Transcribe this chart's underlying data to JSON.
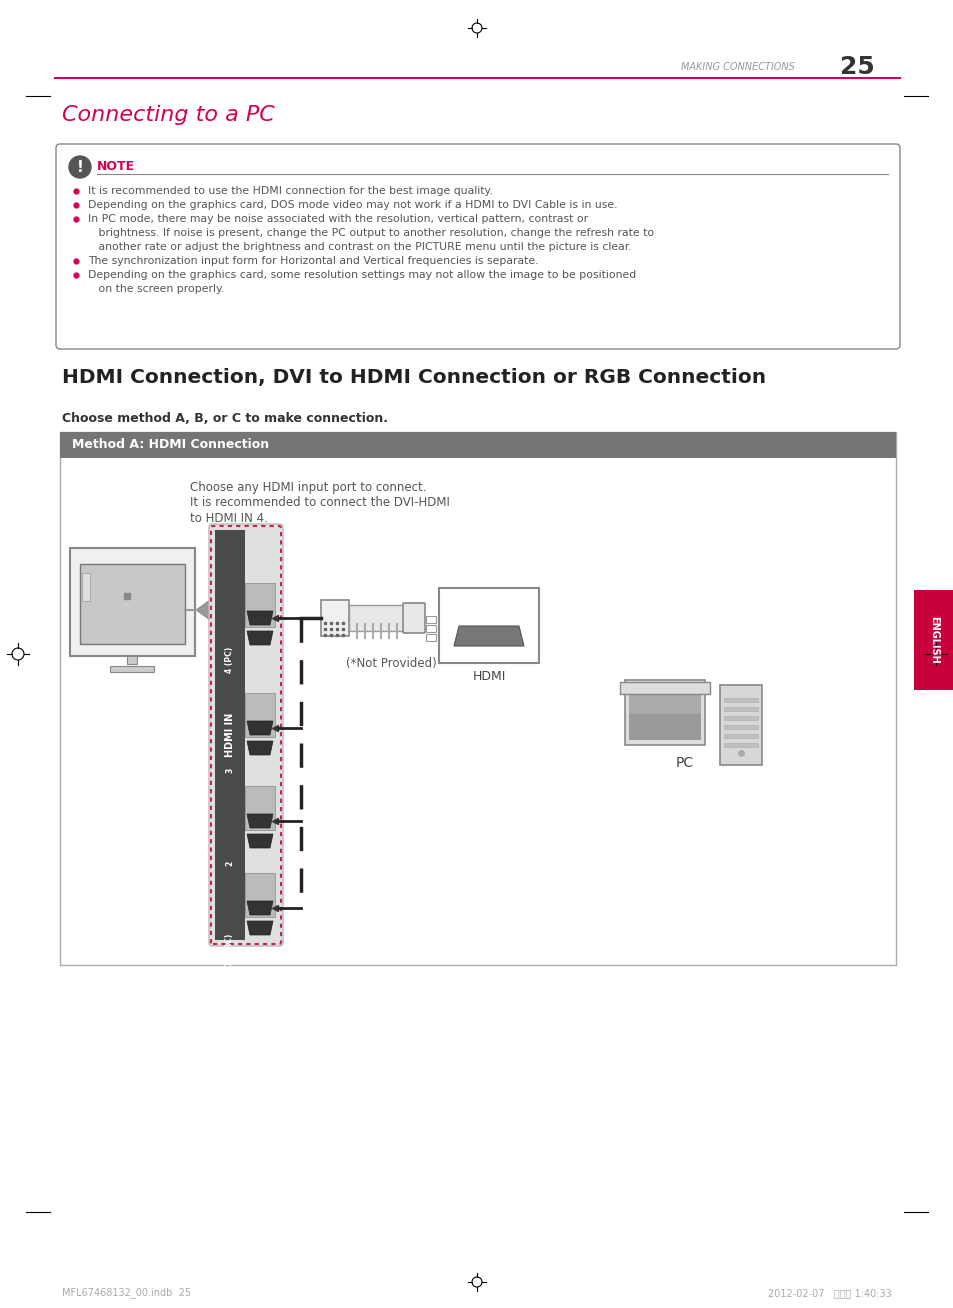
{
  "page_title": "MAKING CONNECTIONS",
  "page_number": "25",
  "section_title": "Connecting to a PC",
  "hdmi_title": "HDMI Connection, DVI to HDMI Connection or RGB Connection",
  "choose_method": "Choose method A, B, or C to make connection.",
  "method_a_label": "Method A: HDMI Connection",
  "note_label": "NOTE",
  "note_bullets": [
    "It is recommended to use the HDMI connection for the best image quality.",
    "Depending on the graphics card, DOS mode video may not work if a HDMI to DVI Cable is in use.",
    "In PC mode, there may be noise associated with the resolution, vertical pattern, contrast or",
    "   brightness. If noise is present, change the PC output to another resolution, change the refresh rate to",
    "   another rate or adjust the brightness and contrast on the PICTURE menu until the picture is clear.",
    "The synchronization input form for Horizontal and Vertical frequencies is separate.",
    "Depending on the graphics card, some resolution settings may not allow the image to be positioned",
    "   on the screen properly."
  ],
  "note_bullet_flags": [
    true,
    true,
    true,
    false,
    false,
    true,
    true,
    false
  ],
  "choose_text_line1": "Choose any HDMI input port to connect.",
  "choose_text_line2": "It is recommended to connect the DVI-HDMI",
  "choose_text_line3": "to HDMI IN 4.",
  "not_provided": "(*Not Provided)",
  "hdmi_label": "HDMI",
  "pc_label": "PC",
  "english_label": "ENGLISH",
  "footer_left": "MFL67468132_00.indb  25",
  "footer_right": "2012-02-07   山山山 1:40:33",
  "bg_color": "#ffffff",
  "section_title_color": "#d40055",
  "header_line_color": "#d40055",
  "note_border_color": "#555555",
  "note_bullet_color": "#d40055",
  "method_header_bg": "#757575",
  "method_header_text": "#ffffff",
  "english_tab_color": "#c8003c",
  "body_text_color": "#555555",
  "header_text_color": "#999999",
  "page_num_color": "#333333"
}
